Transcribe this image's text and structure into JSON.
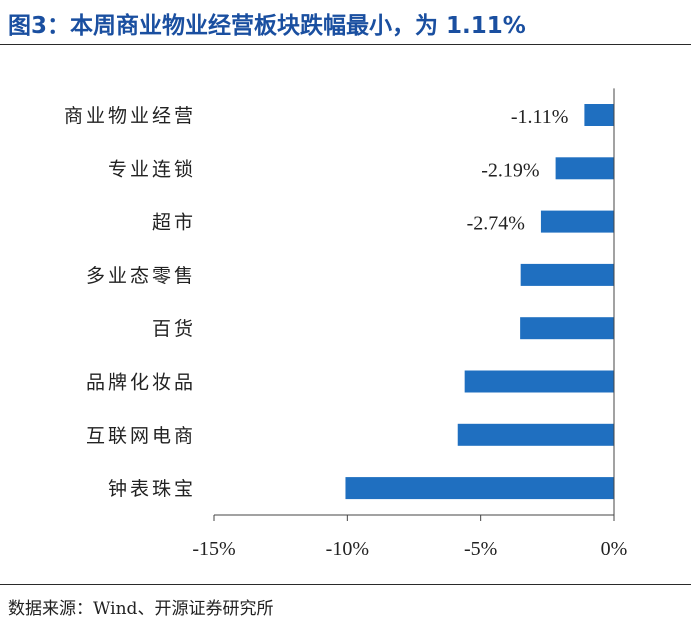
{
  "title": "图3：本周商业物业经营板块跌幅最小，为 1.11%",
  "source": "数据来源：Wind、开源证券研究所",
  "colors": {
    "bar": "#1f6fc0",
    "title": "#1a4fa0"
  },
  "chart_data": {
    "type": "bar",
    "orientation": "horizontal",
    "categories": [
      "商业物业经营",
      "专业连锁",
      "超市",
      "多业态零售",
      "百货",
      "品牌化妆品",
      "互联网电商",
      "钟表珠宝"
    ],
    "values": [
      -1.11,
      -2.19,
      -2.74,
      -3.5,
      -3.52,
      -5.6,
      -5.86,
      -10.07
    ],
    "data_labels": [
      "-1.11%",
      "-2.19%",
      "-2.74%",
      "",
      "",
      "",
      "",
      ""
    ],
    "xlim": [
      -15,
      0
    ],
    "x_ticks": [
      -15,
      -10,
      -5,
      0
    ],
    "x_tick_labels": [
      "-15%",
      "-10%",
      "-5%",
      "0%"
    ],
    "grid": false,
    "legend": "none"
  }
}
